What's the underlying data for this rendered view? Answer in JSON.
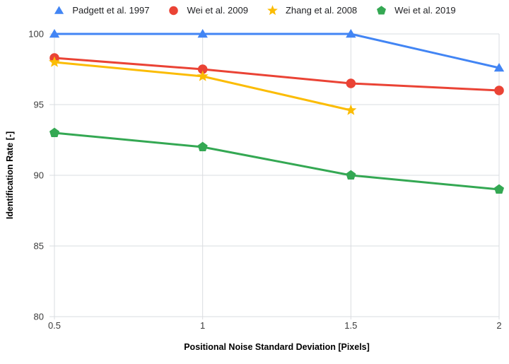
{
  "chart_data": {
    "type": "line",
    "title": "",
    "xlabel": "Positional Noise Standard Deviation [Pixels]",
    "ylabel": "Identification Rate [-]",
    "x": [
      0.5,
      1,
      1.5,
      2
    ],
    "x_ticks": [
      0.5,
      1,
      1.5,
      2
    ],
    "x_tick_labels": [
      "0.5",
      "1",
      "1.5",
      "2"
    ],
    "y_ticks": [
      100,
      95,
      90,
      85,
      80
    ],
    "y_tick_labels": [
      "100",
      "95",
      "90",
      "85",
      "80"
    ],
    "xlim": [
      0.5,
      2
    ],
    "ylim": [
      80,
      100
    ],
    "grid": true,
    "legend_position": "top",
    "series": [
      {
        "name": "Padgett et al. 1997",
        "marker": "triangle",
        "color": "#4285F4",
        "values": [
          100,
          100,
          100,
          97.6
        ]
      },
      {
        "name": "Wei et al. 2009",
        "marker": "circle",
        "color": "#EA4335",
        "values": [
          98.3,
          97.5,
          96.5,
          96
        ]
      },
      {
        "name": "Zhang et al. 2008",
        "marker": "star",
        "color": "#FBBC04",
        "values": [
          98,
          97,
          94.6,
          null
        ]
      },
      {
        "name": "Wei et al. 2019",
        "marker": "pentagon",
        "color": "#34A853",
        "values": [
          93,
          92,
          90,
          89
        ]
      }
    ],
    "style": {
      "background": "#ffffff",
      "grid_color": "#dadce0",
      "tick_label_color": "#3c3c3c",
      "legend_text_color": "#202124",
      "axis_title_color": "#000000"
    }
  }
}
